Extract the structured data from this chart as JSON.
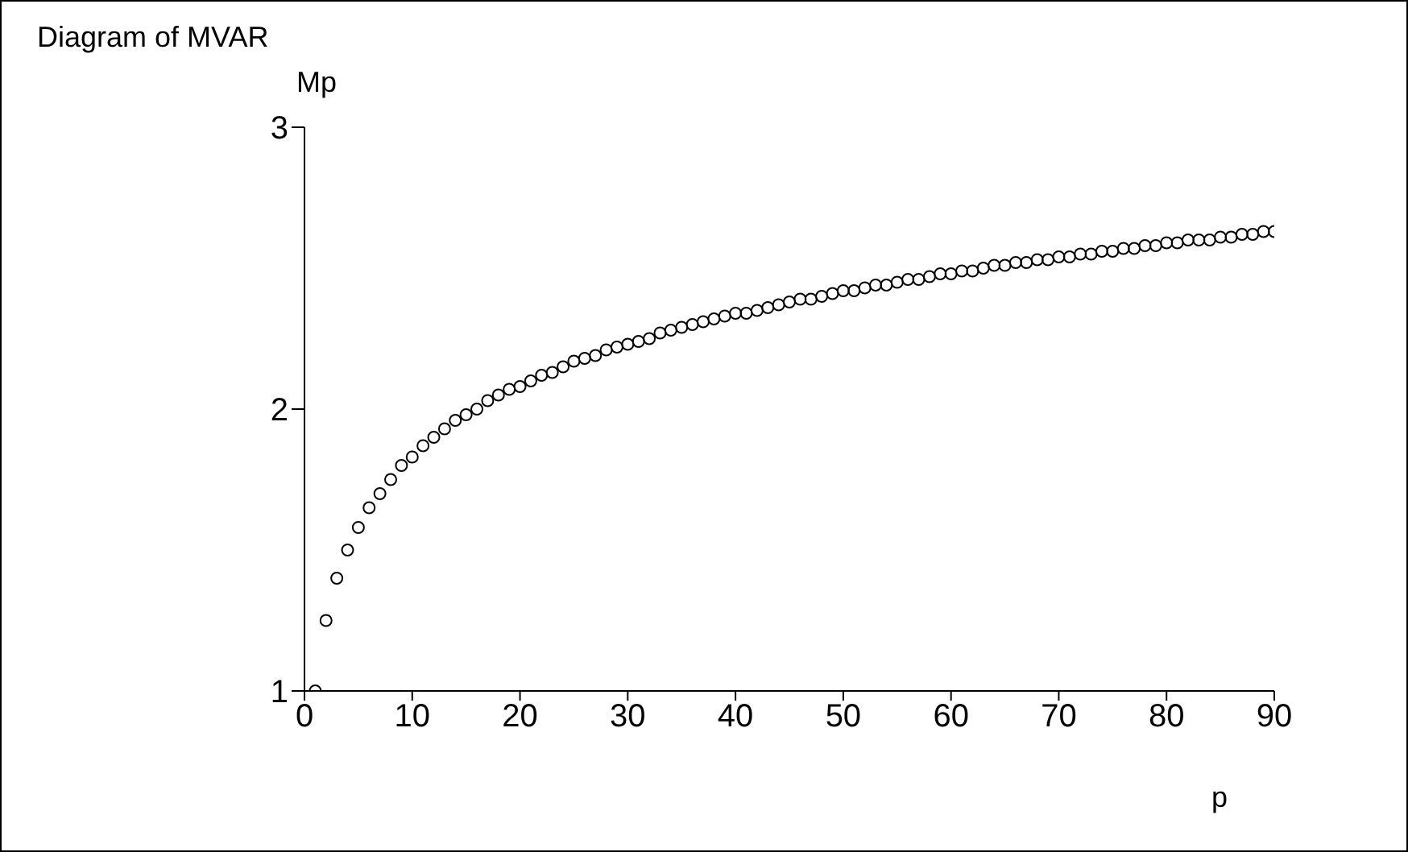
{
  "chart_data": {
    "type": "scatter",
    "title": "Diagram of MVAR",
    "xlabel": "p",
    "ylabel": "Mp",
    "marker": "circle",
    "grid": false,
    "legend": false,
    "xlim": [
      0,
      90
    ],
    "xticks": [
      0,
      10,
      20,
      30,
      40,
      50,
      60,
      70,
      80,
      90
    ],
    "ylim": [
      1,
      3
    ],
    "yticks": [
      1,
      2,
      3
    ],
    "series": [
      {
        "color": "#000000",
        "x": [
          1,
          2,
          3,
          4,
          5,
          6,
          7,
          8,
          9,
          10,
          11,
          12,
          13,
          14,
          15,
          16,
          17,
          18,
          19,
          20,
          21,
          22,
          23,
          24,
          25,
          26,
          27,
          28,
          29,
          30,
          31,
          32,
          33,
          34,
          35,
          36,
          37,
          38,
          39,
          40,
          41,
          42,
          43,
          44,
          45,
          46,
          47,
          48,
          49,
          50,
          51,
          52,
          53,
          54,
          55,
          56,
          57,
          58,
          59,
          60,
          61,
          62,
          63,
          64,
          65,
          66,
          67,
          68,
          69,
          70,
          71,
          72,
          73,
          74,
          75,
          76,
          77,
          78,
          79,
          80,
          81,
          82,
          83,
          84,
          85,
          86,
          87,
          88,
          89,
          90
        ],
        "values": [
          1.0,
          1.25,
          1.4,
          1.5,
          1.58,
          1.65,
          1.7,
          1.75,
          1.8,
          1.83,
          1.87,
          1.9,
          1.93,
          1.96,
          1.98,
          2.0,
          2.03,
          2.05,
          2.07,
          2.08,
          2.1,
          2.12,
          2.13,
          2.15,
          2.17,
          2.18,
          2.19,
          2.21,
          2.22,
          2.23,
          2.24,
          2.25,
          2.27,
          2.28,
          2.29,
          2.3,
          2.31,
          2.32,
          2.33,
          2.34,
          2.34,
          2.35,
          2.36,
          2.37,
          2.38,
          2.39,
          2.39,
          2.4,
          2.41,
          2.42,
          2.42,
          2.43,
          2.44,
          2.44,
          2.45,
          2.46,
          2.46,
          2.47,
          2.48,
          2.48,
          2.49,
          2.49,
          2.5,
          2.51,
          2.51,
          2.52,
          2.52,
          2.53,
          2.53,
          2.54,
          2.54,
          2.55,
          2.55,
          2.56,
          2.56,
          2.57,
          2.57,
          2.58,
          2.58,
          2.59,
          2.59,
          2.6,
          2.6,
          2.6,
          2.61,
          2.61,
          2.62,
          2.62,
          2.63,
          2.63
        ]
      }
    ]
  }
}
